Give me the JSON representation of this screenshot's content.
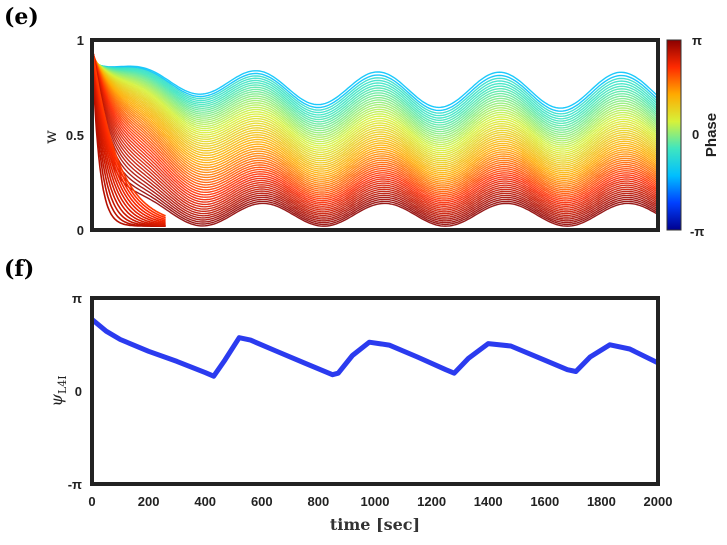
{
  "panel_e": {
    "label": "(e)",
    "ylabel": "w",
    "colorbar": {
      "label": "Phase",
      "ticks": [
        "π",
        "0",
        "-π"
      ],
      "colors": [
        "#8b0000",
        "#ff2a00",
        "#ffaa00",
        "#d6f23a",
        "#3fe6c0",
        "#00bfff",
        "#0040ff",
        "#00008f"
      ]
    }
  },
  "panel_f": {
    "label": "(f)",
    "ylabel_main": "ψ",
    "ylabel_sub": "L4I",
    "xlabel": "time [sec]"
  },
  "chart_data": [
    {
      "type": "line",
      "panel": "e",
      "description_series": "many trajectories of w over time colored by phase",
      "x_range": [
        0,
        2000
      ],
      "ylim": [
        0,
        1
      ],
      "yticks": [
        "0",
        "0.5",
        "1"
      ],
      "xticks": [],
      "n_series": 60,
      "period": 430,
      "upper_envelope": {
        "peak": 0.83,
        "trough": 0.64
      },
      "lower_envelope": {
        "peak": 0.14,
        "trough": 0.02
      }
    },
    {
      "type": "line",
      "panel": "f",
      "x": [
        0,
        50,
        100,
        200,
        300,
        400,
        430,
        470,
        520,
        560,
        650,
        750,
        850,
        870,
        920,
        980,
        1050,
        1150,
        1250,
        1280,
        1330,
        1400,
        1480,
        1580,
        1680,
        1710,
        1760,
        1830,
        1900,
        2000
      ],
      "y": [
        2.42,
        2.02,
        1.74,
        1.34,
        1.0,
        0.62,
        0.5,
        1.05,
        1.8,
        1.72,
        1.35,
        0.95,
        0.55,
        0.6,
        1.2,
        1.65,
        1.55,
        1.15,
        0.72,
        0.6,
        1.1,
        1.6,
        1.52,
        1.12,
        0.72,
        0.66,
        1.15,
        1.56,
        1.42,
        0.95
      ],
      "color": "#2b3bef",
      "xlim": [
        0,
        2000
      ],
      "ylim": [
        -3.1416,
        3.1416
      ],
      "xticks": [
        "0",
        "200",
        "400",
        "600",
        "800",
        "1000",
        "1200",
        "1400",
        "1600",
        "1800",
        "2000"
      ],
      "yticks": [
        "-π",
        "0",
        "π"
      ]
    }
  ]
}
